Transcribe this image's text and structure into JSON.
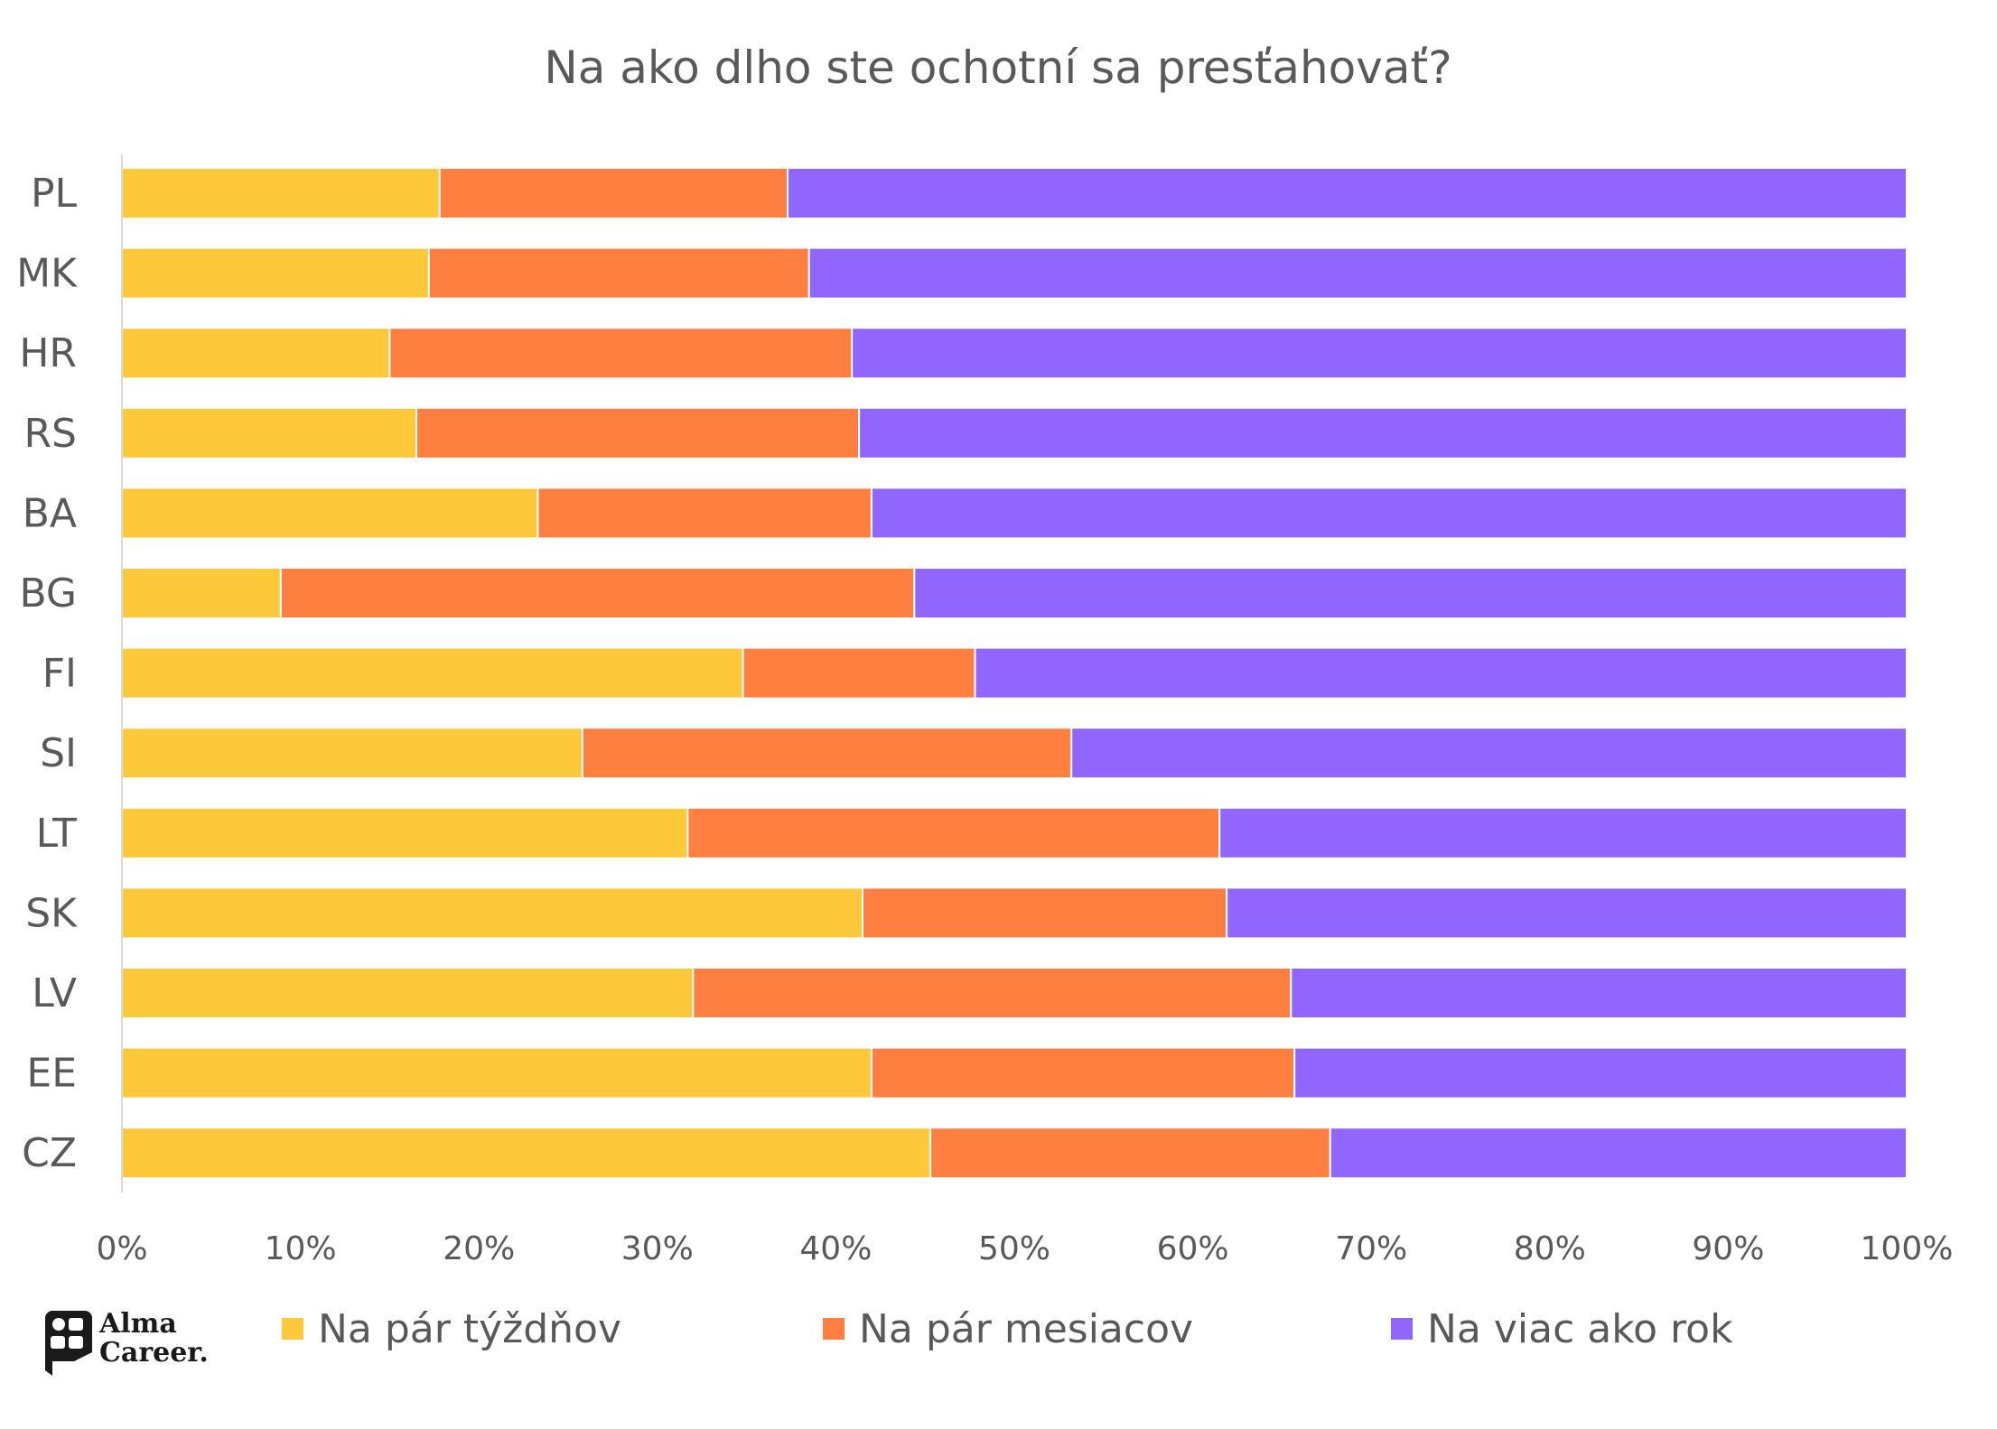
{
  "chart_data": {
    "type": "bar",
    "orientation": "horizontal",
    "stacked": "percent",
    "title": "Na ako dlho ste ochotní sa presťahovať?",
    "xlabel": "",
    "ylabel": "",
    "xlim": [
      0,
      100
    ],
    "x_ticks": [
      "0%",
      "10%",
      "20%",
      "30%",
      "40%",
      "50%",
      "60%",
      "70%",
      "80%",
      "90%",
      "100%"
    ],
    "grid": false,
    "legend_position": "bottom",
    "categories": [
      "PL",
      "MK",
      "HR",
      "RS",
      "BA",
      "BG",
      "FI",
      "SI",
      "LT",
      "SK",
      "LV",
      "EE",
      "CZ"
    ],
    "series": [
      {
        "name": "Na pár týždňov",
        "color": "#FDC93A",
        "values": [
          17.8,
          17.2,
          15.0,
          16.5,
          23.3,
          8.9,
          34.8,
          25.8,
          31.7,
          41.5,
          32.0,
          42.0,
          45.3
        ]
      },
      {
        "name": "Na pár mesiacov",
        "color": "#FF7F40",
        "values": [
          19.5,
          21.3,
          25.9,
          24.8,
          18.7,
          35.5,
          13.0,
          27.4,
          29.8,
          20.4,
          33.5,
          23.7,
          22.4
        ]
      },
      {
        "name": "Na viac ako rok",
        "color": "#9066FF",
        "values": [
          62.7,
          61.5,
          59.1,
          58.7,
          58.0,
          55.6,
          52.2,
          46.8,
          38.5,
          38.1,
          34.5,
          34.3,
          32.3
        ]
      }
    ]
  },
  "branding": {
    "logo_icon": "alma-career-logo-icon",
    "logo_line1": "Alma",
    "logo_line2": "Career."
  }
}
